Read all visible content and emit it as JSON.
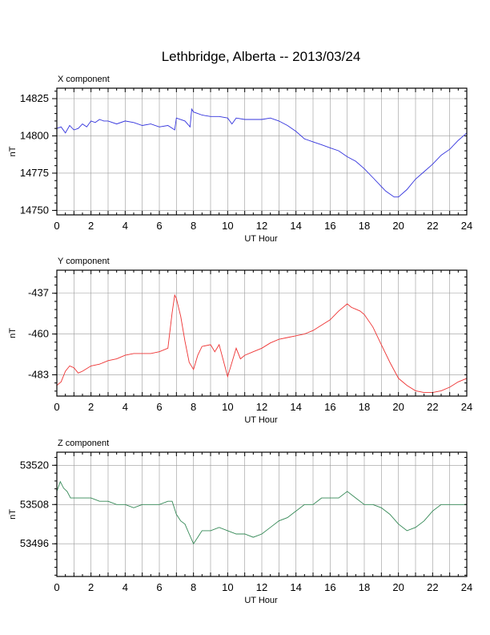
{
  "title": "Lethbridge, Alberta -- 2013/03/24",
  "chart_data": [
    {
      "type": "line",
      "title": "X component",
      "xlabel": "UT Hour",
      "ylabel": "nT",
      "xlim": [
        0,
        24
      ],
      "ylim": [
        14747,
        14832
      ],
      "xticks": [
        0,
        2,
        4,
        6,
        8,
        10,
        12,
        14,
        16,
        18,
        20,
        22,
        24
      ],
      "yticks": [
        14750,
        14775,
        14800,
        14825
      ],
      "grid": true,
      "color": "#3333dd",
      "series": [
        {
          "x": [
            0,
            0.25,
            0.5,
            0.75,
            1,
            1.25,
            1.5,
            1.75,
            2,
            2.25,
            2.5,
            2.75,
            3,
            3.5,
            4,
            4.5,
            5,
            5.5,
            6,
            6.5,
            6.9,
            7,
            7.5,
            7.8,
            7.9,
            8,
            8.25,
            8.5,
            9,
            9.5,
            10,
            10.25,
            10.5,
            11,
            11.5,
            12,
            12.5,
            13,
            13.5,
            14,
            14.5,
            15,
            15.5,
            16,
            16.5,
            17,
            17.5,
            18,
            18.5,
            19,
            19.25,
            19.5,
            19.75,
            20,
            20.5,
            21,
            21.5,
            22,
            22.5,
            23,
            23.5,
            24
          ],
          "y": [
            14805,
            14806,
            14802,
            14807,
            14804,
            14805,
            14808,
            14806,
            14810,
            14809,
            14811,
            14810,
            14810,
            14808,
            14810,
            14809,
            14807,
            14808,
            14806,
            14807,
            14804,
            14812,
            14810,
            14806,
            14818,
            14816,
            14815,
            14814,
            14813,
            14813,
            14812,
            14808,
            14812,
            14811,
            14811,
            14811,
            14812,
            14810,
            14807,
            14803,
            14798,
            14796,
            14794,
            14792,
            14790,
            14786,
            14783,
            14778,
            14772,
            14766,
            14763,
            14761,
            14759,
            14759,
            14764,
            14771,
            14776,
            14781,
            14787,
            14791,
            14797,
            14802
          ]
        }
      ]
    },
    {
      "type": "line",
      "title": "Y component",
      "xlabel": "UT Hour",
      "ylabel": "nT",
      "xlim": [
        0,
        24
      ],
      "ylim": [
        -495,
        -424
      ],
      "xticks": [
        0,
        2,
        4,
        6,
        8,
        10,
        12,
        14,
        16,
        18,
        20,
        22,
        24
      ],
      "yticks": [
        -437,
        -460,
        -483
      ],
      "grid": true,
      "color": "#ee3333",
      "series": [
        {
          "x": [
            0,
            0.25,
            0.5,
            0.75,
            1,
            1.25,
            1.5,
            2,
            2.5,
            3,
            3.5,
            4,
            4.5,
            5,
            5.5,
            6,
            6.5,
            6.75,
            6.9,
            7,
            7.25,
            7.5,
            7.75,
            8,
            8.25,
            8.5,
            9,
            9.25,
            9.5,
            9.75,
            10,
            10.25,
            10.5,
            10.75,
            11,
            11.5,
            12,
            12.5,
            13,
            13.5,
            14,
            14.5,
            15,
            15.5,
            16,
            16.5,
            17,
            17.25,
            17.5,
            17.75,
            18,
            18.5,
            19,
            19.5,
            20,
            20.5,
            21,
            21.5,
            22,
            22.5,
            23,
            23.5,
            24
          ],
          "y": [
            -489,
            -487,
            -481,
            -478,
            -479,
            -482,
            -481,
            -478,
            -477,
            -475,
            -474,
            -472,
            -471,
            -471,
            -471,
            -470,
            -468,
            -448,
            -438,
            -440,
            -450,
            -464,
            -476,
            -480,
            -472,
            -467,
            -466,
            -470,
            -466,
            -475,
            -484,
            -476,
            -468,
            -474,
            -472,
            -470,
            -468,
            -465,
            -463,
            -462,
            -461,
            -460,
            -458,
            -455,
            -452,
            -447,
            -443,
            -445,
            -446,
            -447,
            -449,
            -456,
            -466,
            -476,
            -485,
            -489,
            -492,
            -493,
            -493,
            -492,
            -490,
            -487,
            -485
          ]
        }
      ]
    },
    {
      "type": "line",
      "title": "Z component",
      "xlabel": "UT Hour",
      "ylabel": "nT",
      "xlim": [
        0,
        24
      ],
      "ylim": [
        53486,
        53524
      ],
      "xticks": [
        0,
        2,
        4,
        6,
        8,
        10,
        12,
        14,
        16,
        18,
        20,
        22,
        24
      ],
      "yticks": [
        53496,
        53508,
        53520
      ],
      "grid": true,
      "color": "#338855",
      "series": [
        {
          "x": [
            0,
            0.2,
            0.4,
            0.6,
            0.8,
            1,
            1.5,
            2,
            2.5,
            3,
            3.5,
            4,
            4.5,
            5,
            5.5,
            6,
            6.5,
            6.75,
            7,
            7.25,
            7.5,
            7.75,
            8,
            8.25,
            8.5,
            9,
            9.5,
            10,
            10.5,
            11,
            11.5,
            12,
            12.5,
            13,
            13.5,
            14,
            14.5,
            15,
            15.5,
            16,
            16.5,
            17,
            17.5,
            18,
            18.5,
            19,
            19.5,
            20,
            20.5,
            21,
            21.5,
            22,
            22.5,
            23,
            23.5,
            24
          ],
          "y": [
            53512,
            53515,
            53513,
            53512,
            53510,
            53510,
            53510,
            53510,
            53509,
            53509,
            53508,
            53508,
            53507,
            53508,
            53508,
            53508,
            53509,
            53509,
            53505,
            53503,
            53502,
            53499,
            53496,
            53498,
            53500,
            53500,
            53501,
            53500,
            53499,
            53499,
            53498,
            53499,
            53501,
            53503,
            53504,
            53506,
            53508,
            53508,
            53510,
            53510,
            53510,
            53512,
            53510,
            53508,
            53508,
            53507,
            53505,
            53502,
            53500,
            53501,
            53503,
            53506,
            53508,
            53508,
            53508,
            53508
          ]
        }
      ]
    }
  ]
}
